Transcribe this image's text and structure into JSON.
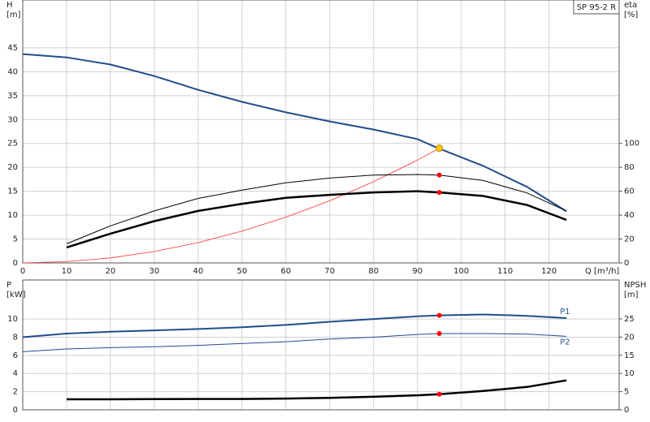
{
  "chart_data": [
    {
      "type": "line",
      "title": "SP 95-2 R",
      "xlabel": "Q [m³/h]",
      "ylabel": "H",
      "yunit": "[m]",
      "y2label": "eta",
      "y2unit": "[%]",
      "x": [
        0,
        10,
        20,
        30,
        40,
        50,
        60,
        70,
        80,
        90,
        95,
        105,
        115,
        124
      ],
      "xlim": [
        0,
        136
      ],
      "xticks": [
        0,
        10,
        20,
        30,
        40,
        50,
        60,
        70,
        80,
        90,
        100,
        110,
        120
      ],
      "xtick_labels": true,
      "ylim": [
        0,
        55
      ],
      "yticks": [
        0,
        5,
        10,
        15,
        20,
        25,
        30,
        35,
        40,
        45
      ],
      "y2lim": [
        0,
        220
      ],
      "y2ticks": [
        0,
        20,
        40,
        60,
        80,
        100
      ],
      "grid": true,
      "series": [
        {
          "color": "#1f4e8c",
          "line_width": 2,
          "axis": "y",
          "values": [
            43.7,
            43,
            41.5,
            39.1,
            36.2,
            33.7,
            31.5,
            29.6,
            27.9,
            25.9,
            23.9,
            20.3,
            15.9,
            10.8
          ]
        },
        {
          "color": "#ff3030",
          "line_width": 0.8,
          "axis": "y",
          "values": [
            0,
            0.27,
            1.06,
            2.39,
            4.25,
            6.65,
            9.57,
            13,
            17,
            21.5,
            24,
            null,
            null,
            null
          ]
        },
        {
          "color": "#000000",
          "line_width": 1,
          "axis": "y2",
          "values": [
            null,
            16,
            31,
            43.5,
            54,
            61,
            67,
            71,
            73.5,
            74,
            73.5,
            69,
            58.5,
            43.5
          ]
        },
        {
          "color": "#000000",
          "line_width": 2.5,
          "axis": "y2",
          "values": [
            null,
            13,
            24.5,
            35,
            43.5,
            49.5,
            54.5,
            57,
            59,
            60,
            59,
            56,
            48.5,
            36
          ]
        }
      ],
      "markers": [
        {
          "x": 95,
          "y": 24,
          "axis": "y",
          "color": "#ffcc00"
        },
        {
          "x": 95,
          "y": 73.5,
          "axis": "y2",
          "color": "#ff0000"
        },
        {
          "x": 95,
          "y": 59,
          "axis": "y2",
          "color": "#ff0000"
        }
      ]
    },
    {
      "type": "line",
      "ylabel": "P",
      "yunit": "[kW]",
      "y2label": "NPSH",
      "y2unit": "[m]",
      "x": [
        0,
        10,
        20,
        30,
        40,
        50,
        60,
        70,
        80,
        90,
        95,
        105,
        115,
        124
      ],
      "xlim": [
        0,
        136
      ],
      "xticks": [
        0,
        10,
        20,
        30,
        40,
        50,
        60,
        70,
        80,
        90,
        100,
        110,
        120
      ],
      "xtick_labels": false,
      "ylim": [
        0,
        14.3
      ],
      "yticks": [
        0,
        2,
        4,
        6,
        8,
        10
      ],
      "y2lim": [
        0,
        35.7
      ],
      "y2ticks": [
        0,
        5,
        10,
        15,
        20,
        25
      ],
      "grid": true,
      "series": [
        {
          "name": "P1",
          "color": "#1f4e8c",
          "line_width": 2,
          "axis": "y",
          "values": [
            8,
            8.4,
            8.6,
            8.75,
            8.9,
            9.1,
            9.35,
            9.7,
            10,
            10.3,
            10.4,
            10.5,
            10.35,
            10.1
          ]
        },
        {
          "name": "P2",
          "color": "#1f4e8c",
          "line_width": 1,
          "axis": "y",
          "values": [
            6.4,
            6.7,
            6.85,
            6.95,
            7.1,
            7.3,
            7.5,
            7.8,
            8,
            8.3,
            8.4,
            8.4,
            8.35,
            8.1
          ]
        },
        {
          "color": "#000000",
          "line_width": 2.5,
          "axis": "y2",
          "values": [
            null,
            2.9,
            2.9,
            2.95,
            3,
            3,
            3.1,
            3.3,
            3.6,
            4,
            4.3,
            5.2,
            6.3,
            8.1
          ]
        }
      ],
      "markers": [
        {
          "x": 95,
          "y": 10.4,
          "axis": "y",
          "color": "#ff0000"
        },
        {
          "x": 95,
          "y": 8.4,
          "axis": "y",
          "color": "#ff0000"
        },
        {
          "x": 95,
          "y": 4.3,
          "axis": "y2",
          "color": "#ff0000"
        }
      ]
    }
  ]
}
